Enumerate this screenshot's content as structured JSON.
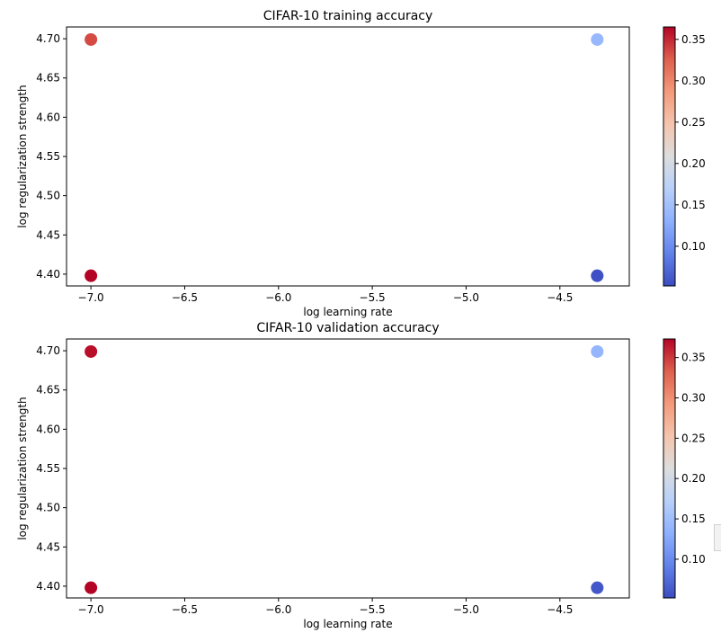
{
  "chart_data": [
    {
      "type": "scatter",
      "title": "CIFAR-10 training accuracy",
      "xlabel": "log learning rate",
      "ylabel": "log regularization strength",
      "xlim": [
        -7.13,
        -4.13
      ],
      "ylim": [
        4.385,
        4.715
      ],
      "xticks": [
        -7.0,
        -6.5,
        -6.0,
        -5.5,
        -5.0,
        -4.5
      ],
      "xtick_labels": [
        "−7.0",
        "−6.5",
        "−6.0",
        "−5.5",
        "−5.0",
        "−4.5"
      ],
      "yticks": [
        4.4,
        4.45,
        4.5,
        4.55,
        4.6,
        4.65,
        4.7
      ],
      "ytick_labels": [
        "4.40",
        "4.45",
        "4.50",
        "4.55",
        "4.60",
        "4.65",
        "4.70"
      ],
      "colormap": "coolwarm",
      "clim": [
        0.052,
        0.365
      ],
      "colorbar_ticks": [
        0.1,
        0.15,
        0.2,
        0.25,
        0.3,
        0.35
      ],
      "colorbar_tick_labels": [
        "0.10",
        "0.15",
        "0.20",
        "0.25",
        "0.30",
        "0.35"
      ],
      "points": [
        {
          "x": -7.0,
          "y": 4.699,
          "value": 0.335
        },
        {
          "x": -7.0,
          "y": 4.398,
          "value": 0.365
        },
        {
          "x": -4.301,
          "y": 4.699,
          "value": 0.14
        },
        {
          "x": -4.301,
          "y": 4.398,
          "value": 0.055
        }
      ]
    },
    {
      "type": "scatter",
      "title": "CIFAR-10 validation accuracy",
      "xlabel": "log learning rate",
      "ylabel": "log regularization strength",
      "xlim": [
        -7.13,
        -4.13
      ],
      "ylim": [
        4.385,
        4.715
      ],
      "xticks": [
        -7.0,
        -6.5,
        -6.0,
        -5.5,
        -5.0,
        -4.5
      ],
      "xtick_labels": [
        "−7.0",
        "−6.5",
        "−6.0",
        "−5.5",
        "−5.0",
        "−4.5"
      ],
      "yticks": [
        4.4,
        4.45,
        4.5,
        4.55,
        4.6,
        4.65,
        4.7
      ],
      "ytick_labels": [
        "4.40",
        "4.45",
        "4.50",
        "4.55",
        "4.60",
        "4.65",
        "4.70"
      ],
      "colormap": "coolwarm",
      "clim": [
        0.052,
        0.373
      ],
      "colorbar_ticks": [
        0.1,
        0.15,
        0.2,
        0.25,
        0.3,
        0.35
      ],
      "colorbar_tick_labels": [
        "0.10",
        "0.15",
        "0.20",
        "0.25",
        "0.30",
        "0.35"
      ],
      "points": [
        {
          "x": -7.0,
          "y": 4.699,
          "value": 0.368
        },
        {
          "x": -7.0,
          "y": 4.398,
          "value": 0.373
        },
        {
          "x": -4.301,
          "y": 4.699,
          "value": 0.14
        },
        {
          "x": -4.301,
          "y": 4.398,
          "value": 0.06
        }
      ]
    }
  ]
}
